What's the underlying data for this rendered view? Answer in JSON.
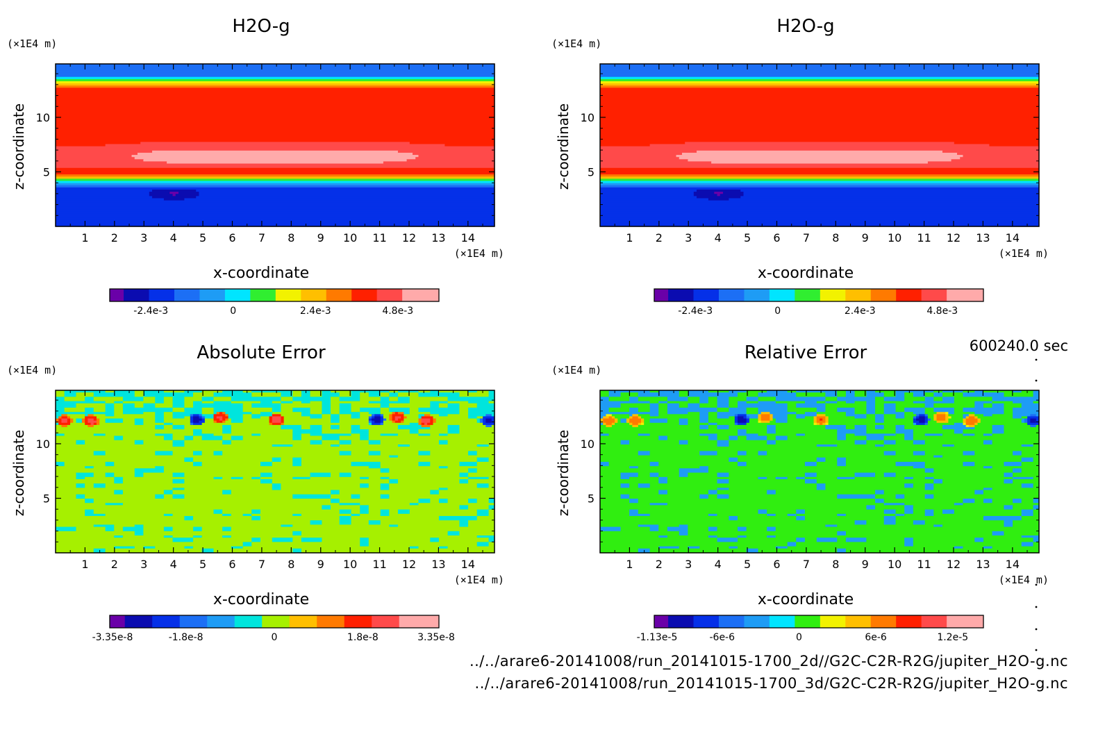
{
  "colors": {
    "h2o": [
      "#6a00a8",
      "#0b0cb0",
      "#0530e8",
      "#1c6ff5",
      "#1e9cf5",
      "#00e5ff",
      "#30ee30",
      "#f2f200",
      "#ffbf00",
      "#ff7a00",
      "#ff2000",
      "#ff4a4a",
      "#ffaaaa"
    ],
    "abs": [
      "#6a00a8",
      "#0b0cb0",
      "#0530e8",
      "#1c6ff5",
      "#1e9cf5",
      "#00e5dd",
      "#a6f000",
      "#ffbf00",
      "#ff7a00",
      "#ff2000",
      "#ff4a4a",
      "#ffaaaa"
    ],
    "rel": [
      "#6a00a8",
      "#0b0cb0",
      "#0530e8",
      "#1c6ff5",
      "#1e9cf5",
      "#00e5ff",
      "#30ee10",
      "#f2f200",
      "#ffbf00",
      "#ff7a00",
      "#ff2000",
      "#ff4a4a",
      "#ffaaaa"
    ]
  },
  "chart_data": [
    {
      "type": "heatmap",
      "title": "H2O-g",
      "xlabel": "x-coordinate",
      "ylabel": "z-coordinate",
      "x_unit": "(×1E4 m)",
      "y_unit": "(×1E4 m)",
      "xticks": [
        1,
        2,
        3,
        4,
        5,
        6,
        7,
        8,
        9,
        10,
        11,
        12,
        13,
        14
      ],
      "yticks": [
        5,
        10
      ],
      "xlim": [
        0,
        14.9
      ],
      "ylim": [
        0,
        14.9
      ],
      "colorbar_ticks": [
        "-2.4e-3",
        "0",
        "2.4e-3",
        "4.8e-3"
      ],
      "colorbar_range": [
        -0.0036,
        0.006
      ],
      "colorbar_tick_values": [
        -0.0024,
        0,
        0.0024,
        0.0048
      ],
      "colormap": "h2o"
    },
    {
      "type": "heatmap",
      "title": "H2O-g",
      "xlabel": "x-coordinate",
      "ylabel": "z-coordinate",
      "x_unit": "(×1E4 m)",
      "y_unit": "(×1E4 m)",
      "xticks": [
        1,
        2,
        3,
        4,
        5,
        6,
        7,
        8,
        9,
        10,
        11,
        12,
        13,
        14
      ],
      "yticks": [
        5,
        10
      ],
      "xlim": [
        0,
        14.9
      ],
      "ylim": [
        0,
        14.9
      ],
      "colorbar_ticks": [
        "-2.4e-3",
        "0",
        "2.4e-3",
        "4.8e-3"
      ],
      "colorbar_range": [
        -0.0036,
        0.006
      ],
      "colorbar_tick_values": [
        -0.0024,
        0,
        0.0024,
        0.0048
      ],
      "colormap": "h2o"
    },
    {
      "type": "heatmap",
      "title": "Absolute Error",
      "xlabel": "x-coordinate",
      "ylabel": "z-coordinate",
      "x_unit": "(×1E4 m)",
      "y_unit": "(×1E4 m)",
      "xticks": [
        1,
        2,
        3,
        4,
        5,
        6,
        7,
        8,
        9,
        10,
        11,
        12,
        13,
        14
      ],
      "yticks": [
        5,
        10
      ],
      "xlim": [
        0,
        14.9
      ],
      "ylim": [
        0,
        14.9
      ],
      "colorbar_ticks": [
        "-3.35e-8",
        "-1.8e-8",
        "0",
        "1.8e-8",
        "3.35e-8"
      ],
      "colorbar_range": [
        -3.35e-08,
        3.35e-08
      ],
      "colorbar_tick_values": [
        -3.35e-08,
        -1.8e-08,
        0,
        1.8e-08,
        3.35e-08
      ],
      "colormap": "abs"
    },
    {
      "type": "heatmap",
      "title": "Relative Error",
      "xlabel": "x-coordinate",
      "ylabel": "z-coordinate",
      "x_unit": "(×1E4 m)",
      "y_unit": "(×1E4 m)",
      "xticks": [
        1,
        2,
        3,
        4,
        5,
        6,
        7,
        8,
        9,
        10,
        11,
        12,
        13,
        14
      ],
      "yticks": [
        5,
        10
      ],
      "xlim": [
        0,
        14.9
      ],
      "ylim": [
        0,
        14.9
      ],
      "colorbar_ticks": [
        "-1.13e-5",
        "-6e-6",
        "0",
        "6e-6",
        "1.2e-5"
      ],
      "colorbar_range": [
        -1.13e-05,
        1.44e-05
      ],
      "colorbar_tick_values": [
        -1.13e-05,
        -6e-06,
        0,
        6e-06,
        1.2e-05
      ],
      "colormap": "rel"
    }
  ],
  "time_label": "600240.0 sec",
  "footer": {
    "file_2d": "../../arare6-20141008/run_20141015-1700_2d//G2C-C2R-R2G/jupiter_H2O-g.nc",
    "file_3d": "../../arare6-20141008/run_20141015-1700_3d/G2C-C2R-R2G/jupiter_H2O-g.nc"
  }
}
